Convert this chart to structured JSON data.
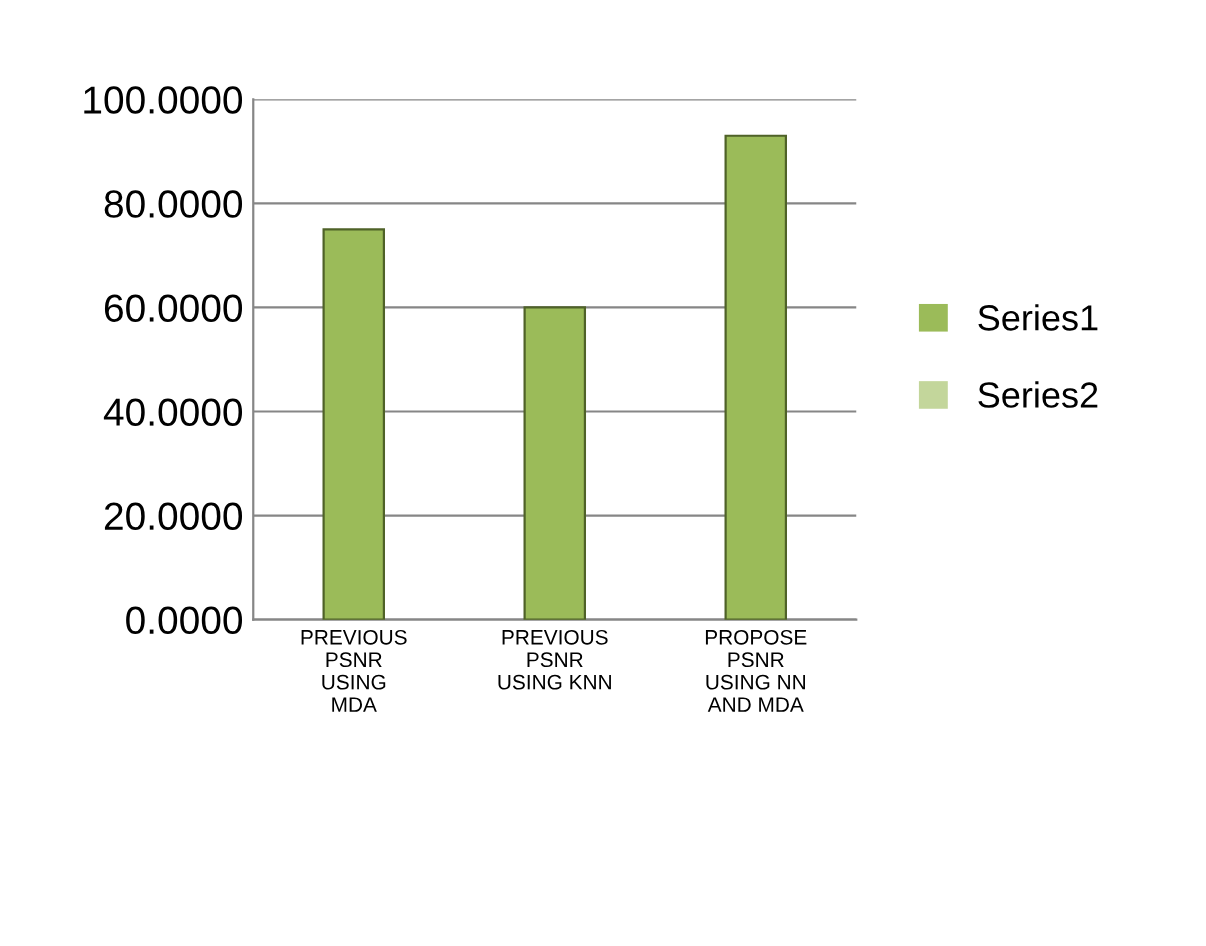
{
  "chart_data": {
    "type": "bar",
    "categories": [
      "PREVIOUS\nPSNR\nUSING\nMDA",
      "PREVIOUS\nPSNR\nUSING KNN",
      "PROPOSE\nPSNR\nUSING NN\nAND MDA"
    ],
    "series": [
      {
        "name": "Series1",
        "color": "#9bbb59",
        "values": [
          75,
          60,
          93
        ]
      },
      {
        "name": "Series2",
        "color": "#c3d69b",
        "values": [
          null,
          null,
          null
        ]
      }
    ],
    "ylim": [
      0,
      100
    ],
    "yticks": [
      {
        "value": 0,
        "label": "0.0000"
      },
      {
        "value": 20,
        "label": "20.0000"
      },
      {
        "value": 40,
        "label": "40.0000"
      },
      {
        "value": 60,
        "label": "60.0000"
      },
      {
        "value": 80,
        "label": "80.0000"
      },
      {
        "value": 100,
        "label": "100.0000"
      }
    ],
    "grid": "y",
    "legend": "right"
  }
}
